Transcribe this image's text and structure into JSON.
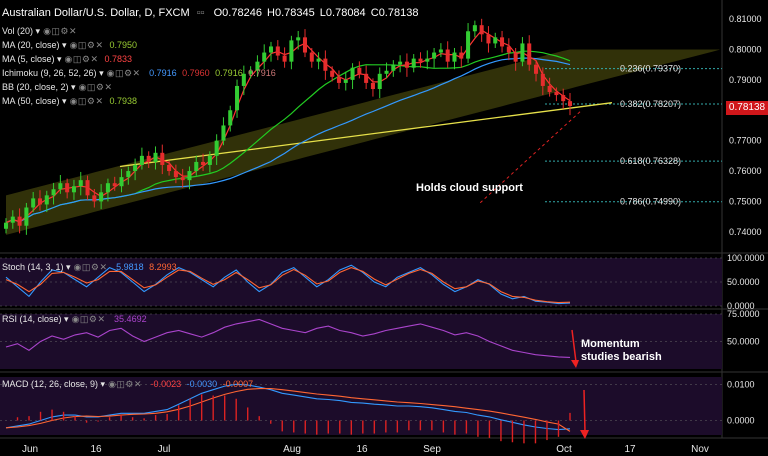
{
  "header": {
    "symbol": "Australian Dollar/U.S. Dollar, D, FXCM",
    "ohlc": [
      {
        "k": "O",
        "v": "0.78246"
      },
      {
        "k": "H",
        "v": "0.78345"
      },
      {
        "k": "L",
        "v": "0.78084"
      },
      {
        "k": "C",
        "v": "0.78138"
      }
    ]
  },
  "legends": {
    "vol": {
      "label": "Vol (20)"
    },
    "ma20": {
      "label": "MA (20, close)",
      "value": "0.7950",
      "color": "#22cc22"
    },
    "ma5": {
      "label": "MA (5, close)",
      "value": "0.7833",
      "color": "#ff3333"
    },
    "ichimoku": {
      "label": "Ichimoku (9, 26, 52, 26)",
      "values": [
        "0.7916",
        "0.7960",
        "0.7916",
        "0.7916"
      ]
    },
    "bb": {
      "label": "BB (20, close, 2)"
    },
    "ma50": {
      "label": "MA (50, close)",
      "value": "0.7938",
      "color": "#3399ff"
    }
  },
  "annotations": {
    "cloud": "Holds cloud support",
    "momentum_line1": "Momentum",
    "momentum_line2": "studies bearish"
  },
  "last_price": "0.78138",
  "x_labels": [
    "Jun",
    "16",
    "Jul",
    "Aug",
    "16",
    "Sep",
    "Oct",
    "17",
    "Nov"
  ],
  "chart_data": [
    {
      "type": "candlestick",
      "title": "Australian Dollar/U.S. Dollar, D, FXCM",
      "ylim": [
        0.735,
        0.813
      ],
      "y_ticks": [
        "0.81000",
        "0.80000",
        "0.79000",
        "0.78000",
        "0.77000",
        "0.76000",
        "0.75000",
        "0.74000"
      ],
      "close_series": [
        0.743,
        0.745,
        0.742,
        0.748,
        0.751,
        0.749,
        0.752,
        0.754,
        0.756,
        0.753,
        0.755,
        0.757,
        0.752,
        0.75,
        0.753,
        0.756,
        0.755,
        0.758,
        0.76,
        0.762,
        0.765,
        0.763,
        0.766,
        0.762,
        0.76,
        0.758,
        0.757,
        0.76,
        0.763,
        0.762,
        0.765,
        0.77,
        0.775,
        0.78,
        0.788,
        0.792,
        0.793,
        0.796,
        0.799,
        0.801,
        0.798,
        0.796,
        0.803,
        0.804,
        0.799,
        0.796,
        0.797,
        0.793,
        0.791,
        0.789,
        0.79,
        0.794,
        0.792,
        0.789,
        0.787,
        0.792,
        0.793,
        0.795,
        0.796,
        0.794,
        0.797,
        0.796,
        0.797,
        0.799,
        0.8,
        0.796,
        0.799,
        0.797,
        0.806,
        0.808,
        0.805,
        0.802,
        0.804,
        0.801,
        0.799,
        0.796,
        0.802,
        0.795,
        0.792,
        0.788,
        0.786,
        0.785,
        0.783,
        0.7814
      ],
      "fibonacci": [
        {
          "label": "0.236(0.79370)",
          "level": 0.7937
        },
        {
          "label": "0.382(0.78207)",
          "level": 0.78207
        },
        {
          "label": "0.618(0.76328)",
          "level": 0.76328
        },
        {
          "label": "0.786(0.74990)",
          "level": 0.7499
        }
      ]
    },
    {
      "type": "line",
      "title": "Stoch (14, 3, 1)",
      "values_text": [
        "5.9818",
        "8.2993"
      ],
      "ylim": [
        0,
        100
      ],
      "y_ticks": [
        "100.0000",
        "50.0000",
        "0.0000"
      ],
      "series": [
        {
          "name": "%K",
          "values": [
            60,
            40,
            20,
            50,
            75,
            70,
            55,
            40,
            60,
            80,
            70,
            50,
            30,
            45,
            65,
            80,
            70,
            55,
            40,
            60,
            75,
            50,
            30,
            45,
            70,
            80,
            60,
            40,
            55,
            75,
            85,
            70,
            50,
            40,
            60,
            70,
            80,
            65,
            45,
            30,
            40,
            55,
            45,
            25,
            15,
            20,
            10,
            8,
            5,
            6
          ]
        },
        {
          "name": "%D",
          "values": [
            55,
            45,
            30,
            45,
            68,
            70,
            60,
            48,
            55,
            72,
            72,
            55,
            38,
            44,
            60,
            75,
            72,
            58,
            45,
            55,
            70,
            55,
            38,
            44,
            64,
            76,
            64,
            46,
            52,
            70,
            80,
            72,
            56,
            44,
            56,
            68,
            76,
            68,
            50,
            36,
            40,
            52,
            46,
            30,
            20,
            18,
            12,
            9,
            7,
            8
          ]
        }
      ]
    },
    {
      "type": "line",
      "title": "RSI (14, close)",
      "values_text": [
        "35.4692"
      ],
      "ylim": [
        25,
        75
      ],
      "y_ticks": [
        "75.0000",
        "50.0000"
      ],
      "series": [
        {
          "name": "RSI",
          "values": [
            45,
            48,
            42,
            50,
            55,
            52,
            56,
            58,
            54,
            60,
            62,
            55,
            50,
            54,
            58,
            60,
            57,
            54,
            58,
            63,
            66,
            68,
            70,
            66,
            62,
            60,
            58,
            62,
            64,
            60,
            58,
            55,
            57,
            60,
            62,
            64,
            66,
            63,
            60,
            56,
            58,
            55,
            50,
            46,
            42,
            40,
            38,
            37,
            36,
            35.5
          ]
        }
      ]
    },
    {
      "type": "line",
      "title": "MACD (12, 26, close, 9)",
      "values_text": [
        "-0.0023",
        "-0.0030",
        "-0.0007"
      ],
      "ylim": [
        -0.004,
        0.012
      ],
      "y_ticks": [
        "0.0100",
        "0.0000"
      ],
      "series": [
        {
          "name": "MACD",
          "values": [
            -0.002,
            -0.0015,
            -0.001,
            0,
            0.001,
            0.0015,
            0.0015,
            0.001,
            0.001,
            0.0015,
            0.002,
            0.002,
            0.002,
            0.0025,
            0.003,
            0.0045,
            0.006,
            0.0075,
            0.0085,
            0.0095,
            0.01,
            0.0098,
            0.0092,
            0.0085,
            0.0075,
            0.007,
            0.0065,
            0.006,
            0.0058,
            0.0055,
            0.005,
            0.0048,
            0.0045,
            0.0043,
            0.004,
            0.004,
            0.0038,
            0.0035,
            0.003,
            0.0025,
            0.0022,
            0.0015,
            0.001,
            0.0002,
            -0.0005,
            -0.0012,
            -0.0018,
            -0.0022,
            -0.0025,
            -0.0023
          ]
        },
        {
          "name": "Signal",
          "values": [
            -0.002,
            -0.0018,
            -0.0014,
            -0.0008,
            0,
            0.0007,
            0.0011,
            0.0012,
            0.0011,
            0.0012,
            0.0015,
            0.0017,
            0.0018,
            0.002,
            0.0024,
            0.0031,
            0.004,
            0.0051,
            0.0062,
            0.0072,
            0.008,
            0.0086,
            0.0088,
            0.0088,
            0.0085,
            0.0081,
            0.0077,
            0.0073,
            0.007,
            0.0067,
            0.0063,
            0.006,
            0.0057,
            0.0054,
            0.0051,
            0.0049,
            0.0047,
            0.0044,
            0.0041,
            0.0038,
            0.0034,
            0.003,
            0.0026,
            0.0021,
            0.0015,
            0.0009,
            0.0003,
            -0.0004,
            -0.001,
            -0.003
          ]
        }
      ]
    }
  ]
}
